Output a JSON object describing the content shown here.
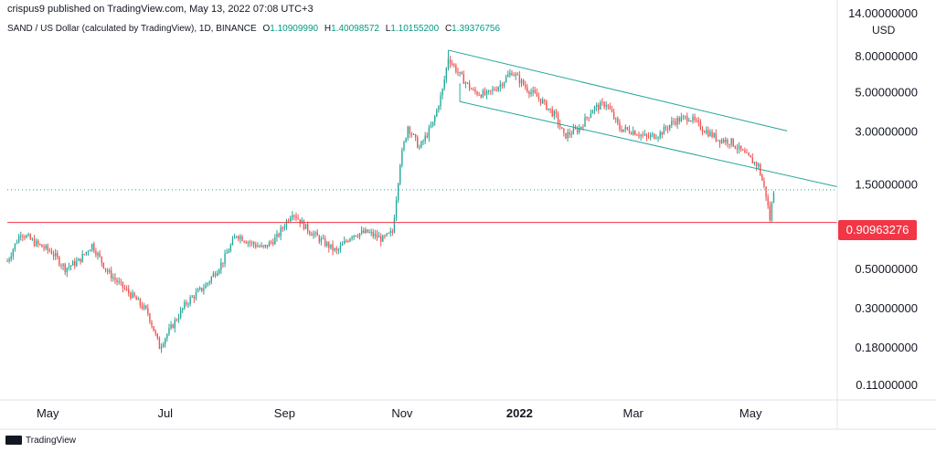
{
  "header": {
    "published": "crispus9 published on TradingView.com, May 13, 2022 07:08 UTC+3"
  },
  "legend": {
    "symbol": "SAND / US Dollar (calculated by TradingView), 1D, BINANCE",
    "open_label": "O",
    "open": "1.10909990",
    "high_label": "H",
    "high": "1.40098572",
    "low_label": "L",
    "low": "1.10155200",
    "close_label": "C",
    "close": "1.39376756"
  },
  "currency": "USD",
  "current_price_tag": "0.90963276",
  "footer": {
    "brand": "TradingView"
  },
  "colors": {
    "up": "#26a69a",
    "down": "#ef5350",
    "channel": "#26a69a",
    "support": "#f23645",
    "last_price_dotted": "#26a69a",
    "axis_text": "#131722"
  },
  "chart_data": {
    "type": "candlestick",
    "scale": "log",
    "ylim": [
      0.09,
      14
    ],
    "y_ticks": [
      {
        "value": 14,
        "label": "14.00000000"
      },
      {
        "value": 8,
        "label": "8.00000000"
      },
      {
        "value": 5,
        "label": "5.00000000"
      },
      {
        "value": 3,
        "label": "3.00000000"
      },
      {
        "value": 1.5,
        "label": "1.50000000"
      },
      {
        "value": 0.5,
        "label": "0.50000000"
      },
      {
        "value": 0.3,
        "label": "0.30000000"
      },
      {
        "value": 0.18,
        "label": "0.18000000"
      },
      {
        "value": 0.11,
        "label": "0.11000000"
      }
    ],
    "x_range": [
      "2021-04-10",
      "2022-06-15"
    ],
    "x_ticks": [
      {
        "date": "2021-05-01",
        "label": "May",
        "bold": false
      },
      {
        "date": "2021-07-01",
        "label": "Jul",
        "bold": false
      },
      {
        "date": "2021-09-01",
        "label": "Sep",
        "bold": false
      },
      {
        "date": "2021-11-01",
        "label": "Nov",
        "bold": false
      },
      {
        "date": "2022-01-01",
        "label": "2022",
        "bold": true
      },
      {
        "date": "2022-03-01",
        "label": "Mar",
        "bold": false
      },
      {
        "date": "2022-05-01",
        "label": "May",
        "bold": false
      }
    ],
    "price_path": [
      [
        "2021-04-10",
        0.55
      ],
      [
        "2021-04-17",
        0.8
      ],
      [
        "2021-04-24",
        0.7
      ],
      [
        "2021-05-03",
        0.62
      ],
      [
        "2021-05-10",
        0.5
      ],
      [
        "2021-05-17",
        0.55
      ],
      [
        "2021-05-24",
        0.68
      ],
      [
        "2021-06-01",
        0.48
      ],
      [
        "2021-06-08",
        0.4
      ],
      [
        "2021-06-15",
        0.34
      ],
      [
        "2021-06-22",
        0.28
      ],
      [
        "2021-06-28",
        0.18
      ],
      [
        "2021-07-05",
        0.24
      ],
      [
        "2021-07-12",
        0.32
      ],
      [
        "2021-07-22",
        0.4
      ],
      [
        "2021-07-31",
        0.55
      ],
      [
        "2021-08-07",
        0.78
      ],
      [
        "2021-08-14",
        0.7
      ],
      [
        "2021-08-21",
        0.65
      ],
      [
        "2021-08-28",
        0.75
      ],
      [
        "2021-09-05",
        1.05
      ],
      [
        "2021-09-12",
        0.85
      ],
      [
        "2021-09-20",
        0.72
      ],
      [
        "2021-09-28",
        0.62
      ],
      [
        "2021-10-06",
        0.78
      ],
      [
        "2021-10-14",
        0.8
      ],
      [
        "2021-10-22",
        0.73
      ],
      [
        "2021-10-27",
        0.8
      ],
      [
        "2021-10-31",
        2.0
      ],
      [
        "2021-11-04",
        3.2
      ],
      [
        "2021-11-10",
        2.4
      ],
      [
        "2021-11-17",
        3.3
      ],
      [
        "2021-11-22",
        5.1
      ],
      [
        "2021-11-25",
        7.8
      ],
      [
        "2021-12-01",
        6.2
      ],
      [
        "2021-12-08",
        5.0
      ],
      [
        "2021-12-15",
        4.8
      ],
      [
        "2021-12-22",
        5.5
      ],
      [
        "2021-12-28",
        6.5
      ],
      [
        "2022-01-05",
        5.2
      ],
      [
        "2022-01-12",
        4.5
      ],
      [
        "2022-01-20",
        3.6
      ],
      [
        "2022-01-24",
        2.8
      ],
      [
        "2022-02-01",
        3.1
      ],
      [
        "2022-02-08",
        4.0
      ],
      [
        "2022-02-15",
        4.3
      ],
      [
        "2022-02-22",
        3.1
      ],
      [
        "2022-03-01",
        3.0
      ],
      [
        "2022-03-08",
        2.75
      ],
      [
        "2022-03-15",
        2.9
      ],
      [
        "2022-03-22",
        3.4
      ],
      [
        "2022-03-30",
        3.6
      ],
      [
        "2022-04-06",
        3.1
      ],
      [
        "2022-04-14",
        2.7
      ],
      [
        "2022-04-21",
        2.6
      ],
      [
        "2022-04-28",
        2.2
      ],
      [
        "2022-05-05",
        1.9
      ],
      [
        "2022-05-09",
        1.3
      ],
      [
        "2022-05-11",
        0.95
      ],
      [
        "2022-05-13",
        1.39
      ]
    ],
    "channel_upper": [
      [
        "2021-11-25",
        8.6
      ],
      [
        "2022-05-20",
        3.0
      ]
    ],
    "channel_lower": [
      [
        "2021-12-01",
        4.4
      ],
      [
        "2022-06-15",
        1.45
      ]
    ],
    "support_level": 0.90963276,
    "last_price_level": 1.39376756,
    "support_start": "2021-04-10",
    "last_price_start": "2021-04-10"
  }
}
